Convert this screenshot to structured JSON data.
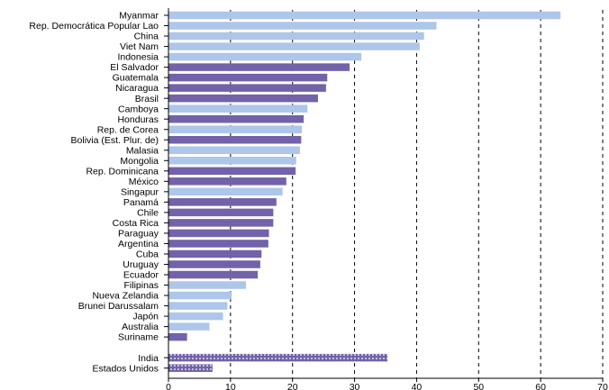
{
  "chart_data": {
    "type": "bar",
    "orientation": "horizontal",
    "categories": [
      "Myanmar",
      "Rep. Democrática Popular Lao",
      "China",
      "Viet Nam",
      "Indonesia",
      "El Salvador",
      "Guatemala",
      "Nicaragua",
      "Brasil",
      "Camboya",
      "Honduras",
      "Rep. de Corea",
      "Bolivia (Est. Plur. de)",
      "Malasia",
      "Mongolia",
      "Rep. Dominicana",
      "México",
      "Singapur",
      "Panamá",
      "Chile",
      "Costa Rica",
      "Paraguay",
      "Argentina",
      "Cuba",
      "Uruguay",
      "Ecuador",
      "Filipinas",
      "Nueva Zelandia",
      "Brunei Darussalam",
      "Japón",
      "Australia",
      "Suriname",
      "",
      "India",
      "Estados Unidos"
    ],
    "values": [
      63.2,
      43.2,
      41.2,
      40.5,
      31.1,
      29.2,
      25.6,
      25.4,
      24.1,
      22.4,
      21.8,
      21.5,
      21.4,
      21.2,
      20.6,
      20.5,
      19.0,
      18.4,
      17.4,
      16.9,
      16.9,
      16.2,
      16.1,
      15.0,
      14.8,
      14.4,
      12.5,
      10.2,
      9.5,
      8.8,
      6.6,
      3.0,
      null,
      35.3,
      7.1
    ],
    "groups": [
      "asia",
      "asia",
      "asia",
      "asia",
      "asia",
      "latam",
      "latam",
      "latam",
      "latam",
      "asia",
      "latam",
      "asia",
      "latam",
      "asia",
      "asia",
      "latam",
      "latam",
      "asia",
      "latam",
      "latam",
      "latam",
      "latam",
      "latam",
      "latam",
      "latam",
      "latam",
      "asia",
      "asia",
      "asia",
      "asia",
      "asia",
      "latam",
      "gap",
      "reference",
      "reference"
    ],
    "colors": {
      "asia": "#adc6ea",
      "latam": "#7262a9",
      "reference": "#7262a9",
      "reference_dots": "#ffffff"
    },
    "xlim": [
      0,
      70
    ],
    "xticks": [
      0,
      10,
      20,
      30,
      40,
      50,
      60,
      70
    ],
    "grid": "vertical dashed"
  }
}
